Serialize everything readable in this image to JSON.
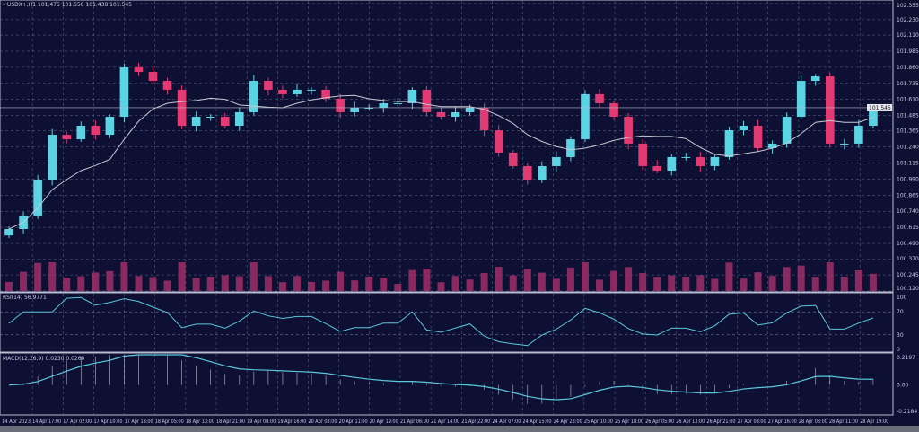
{
  "header": {
    "symbol_line": "USDX+,H1  101.475 101.558 101.438 101.545"
  },
  "rsi_header": "RSI(14) 56.9771",
  "macd_header": "MACD(12,26,9) 0.0230 0.0260",
  "colors": {
    "background": "#0d0f33",
    "bull": "#5cd3e3",
    "bear": "#e23a72",
    "ma": "#c9c9d4",
    "grid": "#8a8fb0",
    "volume": "#a8306a",
    "indicator": "#5cc8dc"
  },
  "chart_data": [
    {
      "type": "candlestick",
      "title": "",
      "price_axis_ticks": [
        "102.355",
        "102.230",
        "102.110",
        "101.985",
        "101.860",
        "101.735",
        "101.610",
        "101.485",
        "101.365",
        "101.240",
        "101.115",
        "100.990",
        "100.865",
        "100.740",
        "100.615",
        "100.490",
        "100.370",
        "100.245",
        "100.120"
      ],
      "ylim": [
        100.12,
        102.355
      ],
      "current_price": "101.545",
      "time_axis_ticks": [
        "14 Apr 2023",
        "14 Apr 17:00",
        "17 Apr 02:00",
        "17 Apr 10:00",
        "17 Apr 18:00",
        "18 Apr 05:00",
        "18 Apr 13:00",
        "18 Apr 21:00",
        "19 Apr 08:00",
        "19 Apr 16:00",
        "20 Apr 03:00",
        "20 Apr 11:00",
        "20 Apr 19:00",
        "21 Apr 06:00",
        "21 Apr 14:00",
        "21 Apr 22:00",
        "24 Apr 07:00",
        "24 Apr 15:00",
        "24 Apr 23:00",
        "25 Apr 10:00",
        "25 Apr 18:00",
        "26 Apr 05:00",
        "26 Apr 13:00",
        "26 Apr 21:00",
        "27 Apr 08:00",
        "27 Apr 16:00",
        "28 Apr 03:00",
        "28 Apr 11:00",
        "28 Apr 19:00"
      ],
      "closes": [
        100.602,
        100.707,
        100.986,
        101.335,
        101.3,
        101.405,
        101.335,
        101.475,
        101.859,
        101.824,
        101.754,
        101.685,
        101.405,
        101.475,
        101.475,
        101.405,
        101.51,
        101.754,
        101.685,
        101.65,
        101.685,
        101.685,
        101.615,
        101.51,
        101.545,
        101.545,
        101.58,
        101.58,
        101.685,
        101.51,
        101.475,
        101.51,
        101.545,
        101.37,
        101.196,
        101.091,
        100.986,
        101.091,
        101.161,
        101.3,
        101.65,
        101.58,
        101.475,
        101.266,
        101.091,
        101.056,
        101.161,
        101.161,
        101.091,
        101.161,
        101.37,
        101.405,
        101.231,
        101.266,
        101.475,
        101.754,
        101.789,
        101.266,
        101.266,
        101.405,
        101.545
      ],
      "moving_average": "on",
      "volume": "on"
    },
    {
      "type": "line",
      "title": "RSI(14)",
      "y_ticks": [
        "100",
        "70",
        "30",
        "0"
      ],
      "ylim": [
        0,
        100
      ],
      "last_value": 56.9771
    },
    {
      "type": "line",
      "title": "MACD(12,26,9)",
      "y_ticks": [
        "0.2197",
        "0.00",
        "-0.2184"
      ],
      "ylim": [
        -0.2184,
        0.2197
      ],
      "values": [
        0.023,
        0.026
      ]
    }
  ]
}
